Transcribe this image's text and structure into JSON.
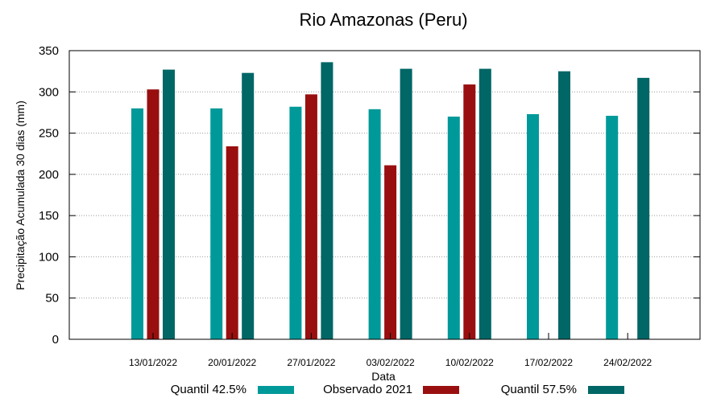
{
  "chart_data": {
    "type": "bar",
    "title": "Rio Amazonas (Peru)",
    "xlabel": "Data",
    "ylabel": "Precipitação Acumulada 30 dias (mm)",
    "ylim": [
      0,
      350
    ],
    "yticks": [
      0,
      50,
      100,
      150,
      200,
      250,
      300,
      350
    ],
    "grid": true,
    "legend_position": "bottom",
    "categories": [
      "13/01/2022",
      "20/01/2022",
      "27/01/2022",
      "03/02/2022",
      "10/02/2022",
      "17/02/2022",
      "24/02/2022"
    ],
    "series": [
      {
        "name": "Quantil 42.5%",
        "color": "#009999",
        "values": [
          280,
          280,
          282,
          279,
          270,
          273,
          271
        ]
      },
      {
        "name": "Observado 2021",
        "color": "#990f0f",
        "values": [
          303,
          234,
          297,
          211,
          309,
          null,
          null
        ]
      },
      {
        "name": "Quantil 57.5%",
        "color": "#006666",
        "values": [
          327,
          323,
          336,
          328,
          328,
          325,
          317
        ]
      }
    ]
  }
}
